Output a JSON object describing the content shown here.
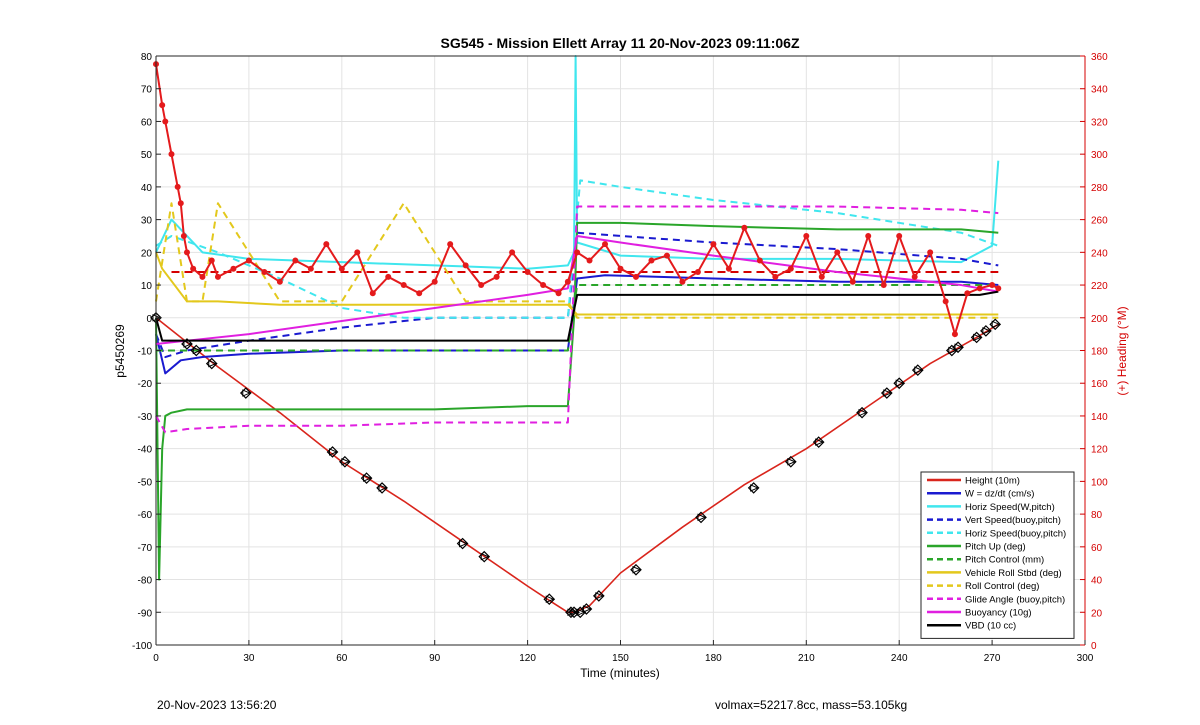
{
  "chart_data": {
    "type": "line",
    "title": "SG545 - Mission Ellett Array 11 20-Nov-2023 09:11:06Z",
    "xlabel": "Time (minutes)",
    "ylabel": "p5450269",
    "y2label": "(+) Heading (°M)",
    "xlim": [
      0,
      300
    ],
    "ylim": [
      -100,
      80
    ],
    "y2lim": [
      0,
      360
    ],
    "xticks": [
      0,
      30,
      60,
      90,
      120,
      150,
      180,
      210,
      240,
      270,
      300
    ],
    "yticks": [
      -100,
      -90,
      -80,
      -70,
      -60,
      -50,
      -40,
      -30,
      -20,
      -10,
      0,
      10,
      20,
      30,
      40,
      50,
      60,
      70,
      80
    ],
    "y2ticks": [
      0,
      20,
      40,
      60,
      80,
      100,
      120,
      140,
      160,
      180,
      200,
      220,
      240,
      260,
      280,
      300,
      320,
      340,
      360
    ],
    "grid": true,
    "legend_position": "bottom-right",
    "colors": {
      "red": "#e41a1c",
      "darkred": "#d40000",
      "blue": "#1010c0",
      "cyan": "#3fe0e8",
      "green": "#2aa52a",
      "yellow": "#e3c81c",
      "magenta": "#e01fe0",
      "black": "#000000"
    },
    "series": [
      {
        "name": "Height (10m)",
        "style": "solid",
        "color": "#d9251c",
        "x": [
          0,
          20,
          40,
          60,
          80,
          100,
          120,
          128,
          133,
          135,
          140,
          150,
          170,
          190,
          210,
          230,
          250,
          265,
          272
        ],
        "y": [
          0,
          -15,
          -29,
          -44,
          -56,
          -69,
          -82,
          -87,
          -90,
          -90,
          -88,
          -78,
          -64,
          -51,
          -40,
          -27,
          -14,
          -6,
          -2
        ]
      },
      {
        "name": "W = dz/dt (cm/s)",
        "style": "solid",
        "color": "#1a1ad0",
        "x": [
          0,
          3,
          8,
          15,
          30,
          60,
          90,
          120,
          133,
          136,
          145,
          180,
          220,
          260,
          272
        ],
        "y": [
          -5,
          -17,
          -13,
          -12,
          -11,
          -10,
          -10,
          -10,
          -10,
          12,
          13,
          12,
          11,
          11,
          10
        ]
      },
      {
        "name": "Horiz Speed(W,pitch)",
        "style": "solid",
        "color": "#40e6ee",
        "x": [
          0,
          5,
          15,
          30,
          60,
          90,
          120,
          133,
          135,
          135.5,
          136,
          150,
          180,
          220,
          260,
          270,
          272
        ],
        "y": [
          20,
          30,
          20,
          18,
          17,
          16,
          15,
          16,
          20,
          80,
          23,
          19,
          18,
          18,
          17,
          22,
          48
        ]
      },
      {
        "name": "Vert Speed(buoy,pitch)",
        "style": "dashed",
        "color": "#1a1ad0",
        "x": [
          0,
          3,
          10,
          30,
          60,
          90,
          120,
          133,
          136,
          150,
          180,
          220,
          260,
          272
        ],
        "y": [
          -5,
          -12,
          -10,
          -7,
          -3,
          0,
          0,
          0,
          26,
          25,
          23,
          21,
          18,
          16
        ]
      },
      {
        "name": "Horiz Speed(buoy,pitch)",
        "style": "dashed",
        "color": "#40e6ee",
        "x": [
          0,
          5,
          20,
          40,
          60,
          80,
          100,
          120,
          133,
          137,
          150,
          180,
          220,
          260,
          272
        ],
        "y": [
          22,
          25,
          20,
          12,
          3,
          0,
          0,
          0,
          0,
          42,
          40,
          36,
          32,
          26,
          22
        ]
      },
      {
        "name": "Pitch Up (deg)",
        "style": "solid",
        "color": "#2aa52a",
        "x": [
          0,
          1,
          2,
          3,
          5,
          10,
          30,
          60,
          90,
          120,
          133,
          135,
          136,
          150,
          180,
          220,
          260,
          272
        ],
        "y": [
          0,
          -80,
          -40,
          -30,
          -29,
          -28,
          -28,
          -28,
          -28,
          -27,
          -27,
          0,
          29,
          29,
          28,
          27,
          27,
          26
        ]
      },
      {
        "name": "Pitch Control (mm)",
        "style": "dashed",
        "color": "#2aa52a",
        "x": [
          0,
          5,
          30,
          60,
          90,
          120,
          133,
          136,
          150,
          180,
          220,
          260,
          272
        ],
        "y": [
          -10,
          -10,
          -10,
          -10,
          -10,
          -10,
          -10,
          10,
          10,
          10,
          10,
          10,
          10
        ]
      },
      {
        "name": "Vehicle Roll Stbd (deg)",
        "style": "solid",
        "color": "#e3c81c",
        "x": [
          0,
          2,
          10,
          20,
          40,
          60,
          80,
          100,
          120,
          133,
          136,
          150,
          180,
          200,
          230,
          260,
          272
        ],
        "y": [
          20,
          15,
          5,
          5,
          4,
          4,
          4,
          4,
          4,
          4,
          1,
          1,
          1,
          1,
          1,
          1,
          1
        ]
      },
      {
        "name": "Roll Control (deg)",
        "style": "dashed",
        "color": "#e3c81c",
        "x": [
          0,
          5,
          10,
          15,
          20,
          40,
          60,
          80,
          100,
          120,
          133,
          136,
          150,
          180,
          210,
          240,
          260,
          272
        ],
        "y": [
          5,
          35,
          5,
          5,
          35,
          5,
          5,
          35,
          5,
          5,
          5,
          0,
          0,
          0,
          0,
          0,
          0,
          0
        ]
      },
      {
        "name": "Glide Angle (buoy,pitch)",
        "style": "dashed",
        "color": "#e01fe0",
        "x": [
          0,
          3,
          10,
          30,
          60,
          90,
          120,
          133,
          136,
          150,
          180,
          220,
          260,
          272
        ],
        "y": [
          -30,
          -35,
          -34,
          -33,
          -33,
          -32,
          -32,
          -32,
          34,
          34,
          34,
          34,
          33,
          32
        ]
      },
      {
        "name": "Buoyancy (10g)",
        "style": "solid",
        "color": "#e01fe0",
        "x": [
          0,
          10,
          30,
          60,
          90,
          120,
          133,
          136,
          150,
          180,
          220,
          260,
          272
        ],
        "y": [
          -8,
          -7,
          -5,
          -1,
          3,
          7,
          9,
          25,
          23,
          19,
          14,
          10,
          8
        ]
      },
      {
        "name": "VBD (10 cc)",
        "style": "solid",
        "color": "#000000",
        "x": [
          0,
          2,
          5,
          30,
          60,
          90,
          120,
          133,
          136,
          150,
          180,
          220,
          260,
          264,
          266,
          272
        ],
        "y": [
          0,
          -7,
          -7,
          -7,
          -7,
          -7,
          -7,
          -7,
          7,
          7,
          7,
          7,
          7,
          7,
          7,
          8
        ]
      }
    ],
    "heading_series": {
      "axis": "right",
      "marker": "dot",
      "color": "#e41a1c",
      "dashed_mean": 228,
      "x": [
        0,
        2,
        3,
        5,
        7,
        8,
        9,
        10,
        12,
        15,
        18,
        20,
        25,
        30,
        35,
        40,
        45,
        50,
        55,
        60,
        65,
        70,
        75,
        80,
        85,
        90,
        95,
        100,
        105,
        110,
        115,
        120,
        125,
        130,
        133,
        136,
        140,
        145,
        150,
        155,
        160,
        165,
        170,
        175,
        180,
        185,
        190,
        195,
        200,
        205,
        210,
        215,
        220,
        225,
        230,
        235,
        240,
        245,
        250,
        255,
        258,
        262,
        266,
        270,
        272
      ],
      "y": [
        355,
        330,
        320,
        300,
        280,
        270,
        250,
        240,
        230,
        225,
        235,
        225,
        230,
        235,
        228,
        222,
        235,
        230,
        245,
        230,
        240,
        215,
        225,
        220,
        215,
        222,
        245,
        232,
        220,
        225,
        240,
        228,
        220,
        215,
        222,
        240,
        235,
        245,
        230,
        225,
        235,
        238,
        222,
        228,
        245,
        230,
        255,
        235,
        225,
        230,
        250,
        225,
        240,
        222,
        250,
        220,
        250,
        225,
        240,
        210,
        190,
        215,
        218,
        220,
        218
      ]
    },
    "markers": {
      "name": "dive waypoints",
      "x": [
        0,
        10,
        13,
        18,
        29,
        57,
        61,
        68,
        73,
        99,
        106,
        127,
        134,
        135,
        137,
        139,
        143,
        155,
        176,
        193,
        205,
        214,
        228,
        236,
        240,
        246,
        257,
        259,
        265,
        268,
        271
      ],
      "y": [
        0,
        -8,
        -10,
        -14,
        -23,
        -41,
        -44,
        -49,
        -52,
        -69,
        -73,
        -86,
        -90,
        -90,
        -90,
        -89,
        -85,
        -77,
        -61,
        -52,
        -44,
        -38,
        -29,
        -23,
        -20,
        -16,
        -10,
        -9,
        -6,
        -4,
        -2
      ]
    }
  },
  "footer": {
    "left": "20-Nov-2023 13:56:20",
    "right": "volmax=52217.8cc, mass=53.105kg"
  }
}
